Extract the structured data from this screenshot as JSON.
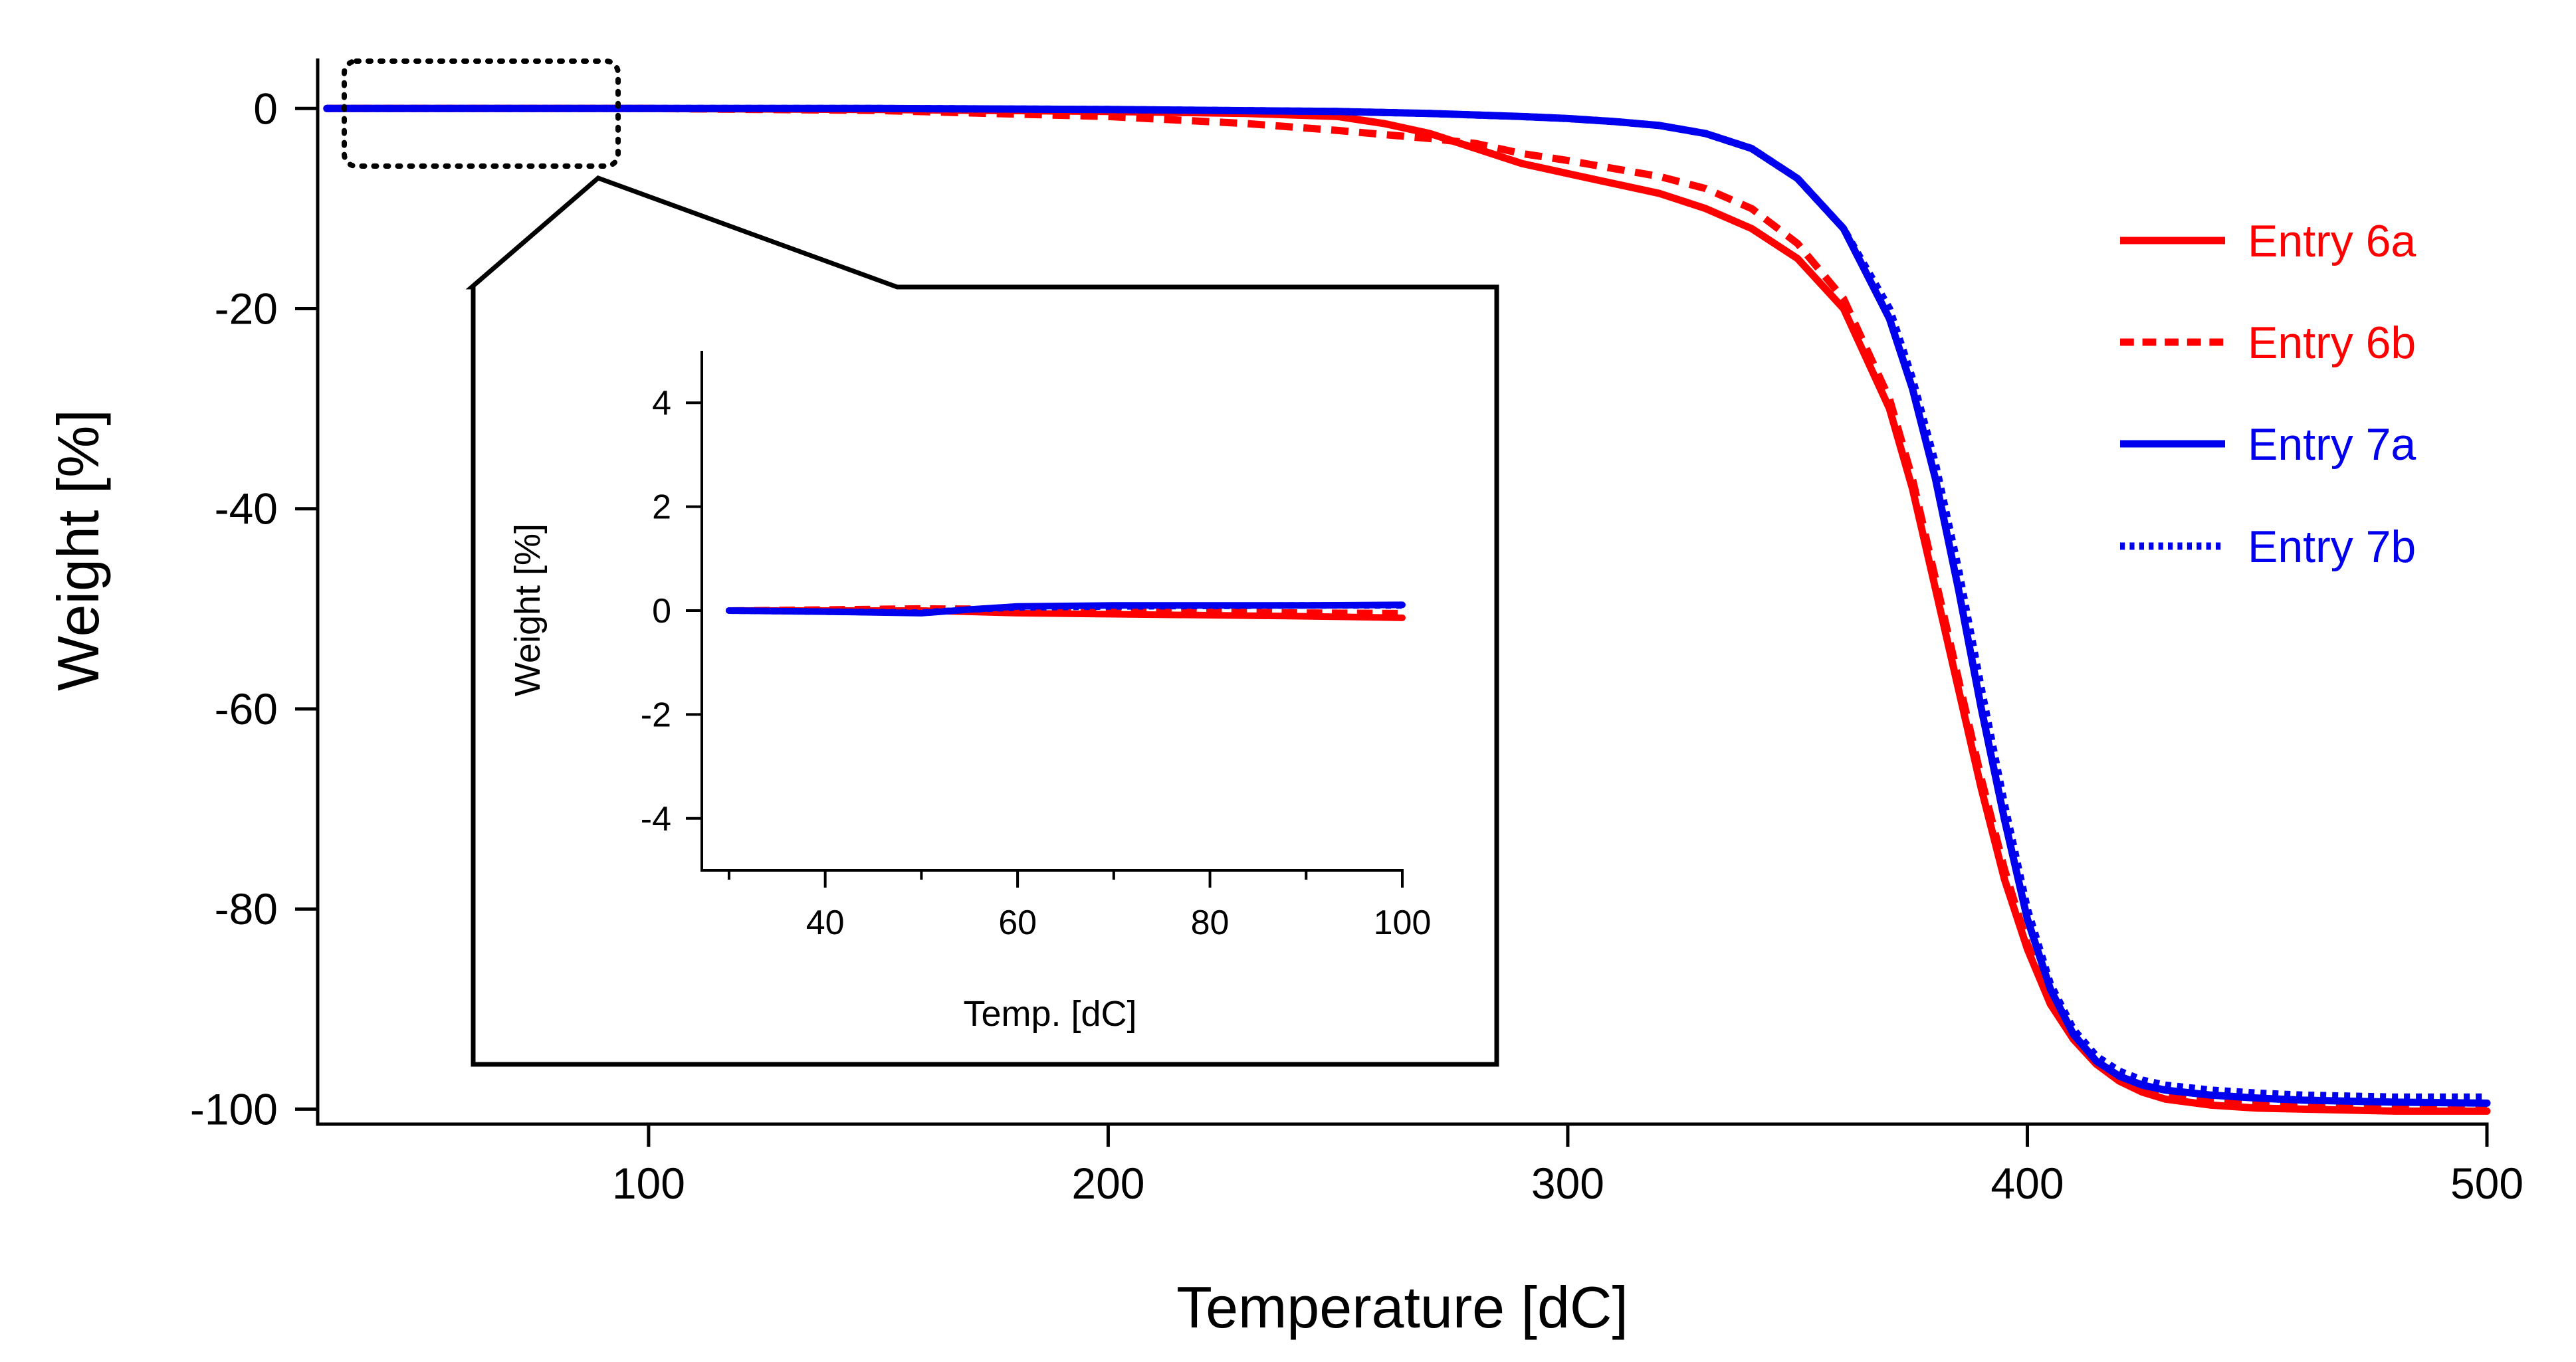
{
  "chart_data": [
    {
      "type": "line",
      "title": "",
      "xlabel": "Temperature [dC]",
      "ylabel": "Weight [%]",
      "xlim": [
        28,
        500
      ],
      "ylim": [
        -101.5,
        5
      ],
      "xticks": [
        100,
        200,
        300,
        400,
        500
      ],
      "yticks": [
        0,
        -20,
        -40,
        -60,
        -80,
        -100
      ],
      "grid": false,
      "legend_position": "right",
      "series": [
        {
          "name": "Entry 6a",
          "color": "#ff0000",
          "style": "solid",
          "x": [
            30,
            100,
            150,
            200,
            230,
            250,
            260,
            270,
            280,
            290,
            300,
            310,
            320,
            330,
            340,
            350,
            360,
            370,
            375,
            380,
            385,
            390,
            395,
            400,
            405,
            410,
            415,
            420,
            425,
            430,
            440,
            450,
            460,
            480,
            500
          ],
          "y": [
            0,
            0,
            -0.1,
            -0.3,
            -0.5,
            -0.8,
            -1.5,
            -2.5,
            -4,
            -5.5,
            -6.5,
            -7.5,
            -8.5,
            -10,
            -12,
            -15,
            -20,
            -30,
            -38,
            -48,
            -58,
            -68,
            -77,
            -84,
            -89.5,
            -93,
            -95.5,
            -97.2,
            -98.3,
            -99,
            -99.6,
            -99.9,
            -100,
            -100.2,
            -100.2
          ]
        },
        {
          "name": "Entry 6b",
          "color": "#ff0000",
          "style": "dashed",
          "x": [
            30,
            100,
            150,
            200,
            230,
            250,
            260,
            270,
            280,
            290,
            300,
            310,
            320,
            330,
            340,
            350,
            360,
            370,
            375,
            380,
            385,
            390,
            395,
            400,
            405,
            410,
            415,
            420,
            425,
            430,
            440,
            450,
            460,
            480,
            500
          ],
          "y": [
            0,
            0,
            -0.2,
            -0.8,
            -1.5,
            -2.2,
            -2.6,
            -3,
            -3.5,
            -4.5,
            -5.2,
            -6,
            -6.8,
            -8,
            -10,
            -13.5,
            -19,
            -29,
            -37,
            -47,
            -57,
            -67,
            -76,
            -83.5,
            -89,
            -92.8,
            -95.3,
            -97,
            -98,
            -98.6,
            -99.2,
            -99.5,
            -99.6,
            -99.7,
            -99.7
          ]
        },
        {
          "name": "Entry 7a",
          "color": "#0000ee",
          "style": "solid",
          "x": [
            30,
            100,
            150,
            200,
            250,
            270,
            290,
            300,
            310,
            320,
            330,
            340,
            350,
            360,
            370,
            375,
            380,
            385,
            390,
            395,
            400,
            405,
            410,
            415,
            420,
            425,
            430,
            440,
            450,
            460,
            480,
            500
          ],
          "y": [
            0,
            0,
            0,
            -0.1,
            -0.3,
            -0.5,
            -0.8,
            -1,
            -1.3,
            -1.7,
            -2.5,
            -4,
            -7,
            -12,
            -21,
            -28,
            -37,
            -48,
            -60,
            -71,
            -81,
            -88,
            -92.5,
            -95.2,
            -96.7,
            -97.6,
            -98.1,
            -98.6,
            -98.9,
            -99.1,
            -99.3,
            -99.4
          ]
        },
        {
          "name": "Entry 7b",
          "color": "#0000ee",
          "style": "dotted",
          "x": [
            30,
            100,
            150,
            200,
            250,
            270,
            290,
            300,
            310,
            320,
            330,
            340,
            350,
            360,
            370,
            375,
            380,
            385,
            390,
            395,
            400,
            405,
            410,
            415,
            420,
            425,
            430,
            440,
            450,
            460,
            480,
            500
          ],
          "y": [
            0,
            0,
            0,
            -0.1,
            -0.3,
            -0.5,
            -0.8,
            -1,
            -1.3,
            -1.7,
            -2.5,
            -4,
            -7,
            -12,
            -20,
            -27,
            -35.5,
            -46,
            -58,
            -69.5,
            -80,
            -87.5,
            -92,
            -94.7,
            -96.2,
            -97.1,
            -97.6,
            -98.1,
            -98.4,
            -98.6,
            -98.8,
            -98.8
          ]
        }
      ]
    },
    {
      "type": "line",
      "title": "",
      "xlabel": "Temp. [dC]",
      "ylabel": "Weight [%]",
      "xlim": [
        28,
        100
      ],
      "ylim": [
        -5,
        5
      ],
      "xticks": [
        40,
        60,
        80,
        100
      ],
      "minor_xticks": [
        30,
        50,
        70,
        90
      ],
      "yticks": [
        4,
        2,
        0,
        -2,
        -4
      ],
      "grid": false,
      "series": [
        {
          "name": "Entry 6a",
          "color": "#ff0000",
          "style": "solid",
          "x": [
            30,
            40,
            50,
            60,
            70,
            80,
            90,
            100
          ],
          "y": [
            0,
            0,
            0,
            -0.05,
            -0.07,
            -0.09,
            -0.11,
            -0.14
          ]
        },
        {
          "name": "Entry 6b",
          "color": "#ff0000",
          "style": "dashed",
          "x": [
            30,
            40,
            50,
            60,
            70,
            80,
            90,
            100
          ],
          "y": [
            0,
            0.02,
            0.04,
            0.03,
            0.0,
            -0.02,
            -0.04,
            -0.05
          ]
        },
        {
          "name": "Entry 7a",
          "color": "#0000ee",
          "style": "solid",
          "x": [
            30,
            40,
            50,
            55,
            60,
            70,
            80,
            90,
            100
          ],
          "y": [
            0,
            -0.02,
            -0.05,
            0.02,
            0.08,
            0.1,
            0.1,
            0.1,
            0.11
          ]
        },
        {
          "name": "Entry 7b",
          "color": "#0000ee",
          "style": "dotted",
          "x": [
            30,
            40,
            50,
            55,
            60,
            70,
            80,
            90,
            100
          ],
          "y": [
            0,
            -0.02,
            -0.04,
            0.02,
            0.06,
            0.08,
            0.09,
            0.1,
            0.1
          ]
        }
      ]
    }
  ]
}
